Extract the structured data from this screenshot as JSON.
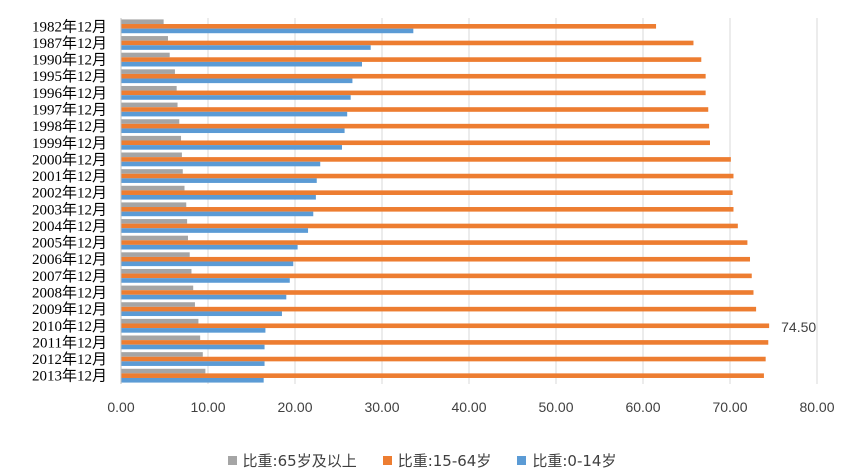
{
  "chart_data": {
    "type": "bar",
    "orientation": "horizontal",
    "categories": [
      "1982年12月",
      "1987年12月",
      "1990年12月",
      "1995年12月",
      "1996年12月",
      "1997年12月",
      "1998年12月",
      "1999年12月",
      "2000年12月",
      "2001年12月",
      "2002年12月",
      "2003年12月",
      "2004年12月",
      "2005年12月",
      "2006年12月",
      "2007年12月",
      "2008年12月",
      "2009年12月",
      "2010年12月",
      "2011年12月",
      "2012年12月",
      "2013年12月"
    ],
    "series": [
      {
        "name": "比重:65岁及以上",
        "color": "#A5A5A5",
        "values": [
          4.9,
          5.4,
          5.6,
          6.2,
          6.4,
          6.5,
          6.7,
          6.9,
          7.0,
          7.1,
          7.3,
          7.5,
          7.6,
          7.7,
          7.9,
          8.1,
          8.3,
          8.5,
          8.9,
          9.1,
          9.4,
          9.7
        ]
      },
      {
        "name": "比重:15-64岁",
        "color": "#ED7D31",
        "values": [
          61.5,
          65.8,
          66.7,
          67.2,
          67.2,
          67.5,
          67.6,
          67.7,
          70.1,
          70.4,
          70.3,
          70.4,
          70.9,
          72.0,
          72.3,
          72.5,
          72.7,
          73.0,
          74.5,
          74.4,
          74.1,
          73.9
        ]
      },
      {
        "name": "比重:0-14岁",
        "color": "#5B9BD5",
        "values": [
          33.6,
          28.7,
          27.7,
          26.6,
          26.4,
          26.0,
          25.7,
          25.4,
          22.9,
          22.5,
          22.4,
          22.1,
          21.5,
          20.3,
          19.8,
          19.4,
          19.0,
          18.5,
          16.6,
          16.5,
          16.5,
          16.4
        ]
      }
    ],
    "xlim": [
      0,
      80
    ],
    "xticks": [
      "0.00",
      "10.00",
      "20.00",
      "30.00",
      "40.00",
      "50.00",
      "60.00",
      "70.00",
      "80.00"
    ],
    "annotation": "74.50",
    "grid": "vertical",
    "legend_position": "bottom"
  }
}
